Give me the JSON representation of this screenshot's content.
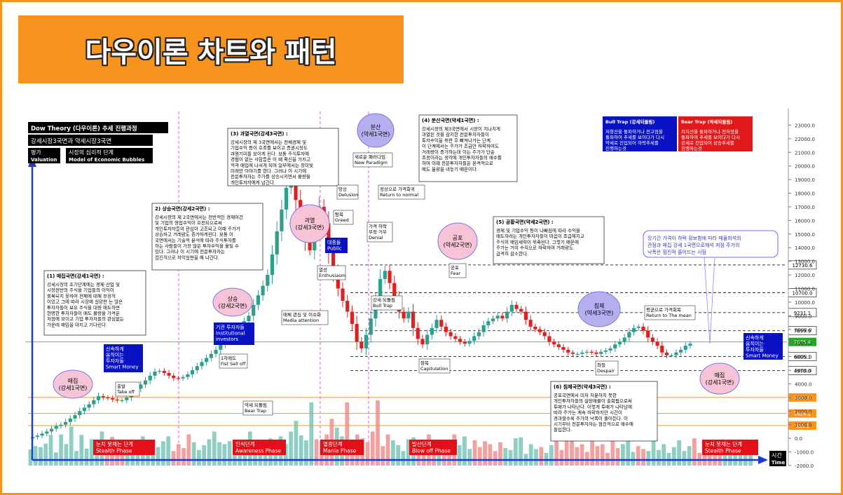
{
  "page_title": "다우이론 차트와 패턴",
  "chart_data": {
    "type": "candlestick",
    "y_ticks": [
      "23000.0",
      "22000.0",
      "21000.0",
      "20000.0",
      "19000.0",
      "18000.0",
      "17000.0",
      "16000.0",
      "15000.0",
      "14000.0",
      "13000.0",
      "12000.0",
      "11000.0",
      "10000.0",
      "9000.0",
      "8000.0",
      "7000.0",
      "6000.0",
      "5000.0",
      "4000.0",
      "3000.0",
      "2000.0",
      "1000.0",
      "0.0",
      "-1000.0",
      "-2000.0"
    ],
    "ylim": [
      -2000,
      24000
    ],
    "price_levels": [
      {
        "label": "12730.6",
        "value": 12730.6,
        "color": "#000000",
        "style": "dashed"
      },
      {
        "label": "10700.0",
        "value": 10700,
        "color": "#000000",
        "style": "dashed"
      },
      {
        "label": "9231.1",
        "value": 9231.1,
        "color": "#000000",
        "style": "dashed"
      },
      {
        "label": "7899.9",
        "value": 7899.9,
        "color": "#000000",
        "style": "dashed"
      },
      {
        "label": "7075.4",
        "value": 7075.4,
        "color": "#22aa22",
        "style": "solid"
      },
      {
        "label": "6005.1",
        "value": 6005.1,
        "color": "#000000",
        "style": "dashed"
      },
      {
        "label": "4970.0",
        "value": 4970,
        "color": "#000000",
        "style": "dashed"
      },
      {
        "label": "3001.0",
        "value": 3001,
        "color": "#f7941d",
        "style": "solid"
      },
      {
        "label": "1826.2",
        "value": 1826.2,
        "color": "#f7941d",
        "style": "solid"
      },
      {
        "label": "935.1",
        "value": 935.1,
        "color": "#f7941d",
        "style": "solid"
      }
    ],
    "price_series": [
      0,
      100,
      200,
      350,
      500,
      700,
      900,
      1000,
      1200,
      1450,
      1700,
      2000,
      2250,
      2500,
      2800,
      3100,
      3000,
      2950,
      2850,
      2780,
      2800,
      3000,
      3350,
      3650,
      3950,
      4250,
      4600,
      4900,
      4950,
      4800,
      4600,
      4420,
      4400,
      4500,
      4700,
      5000,
      5300,
      5600,
      5900,
      6200,
      6500,
      6900,
      7300,
      7500,
      7800,
      8200,
      8600,
      9000,
      9800,
      10500,
      11200,
      12000,
      13500,
      15200,
      16800,
      18400,
      19300,
      17500,
      15800,
      14400,
      13800,
      15300,
      17000,
      15800,
      13700,
      12200,
      11000,
      10100,
      9300,
      8400,
      7100,
      6600,
      7600,
      8800,
      10100,
      11700,
      12300,
      11400,
      10300,
      9300,
      8800,
      9300,
      8100,
      7300,
      6900,
      7600,
      8100,
      8700,
      8200,
      7800,
      7500,
      7300,
      7100,
      6950,
      7150,
      7500,
      7800,
      8300,
      8600,
      8800,
      9000,
      8800,
      9300,
      9800,
      9500,
      9300,
      8700,
      8200,
      8000,
      7800,
      7500,
      7100,
      6900,
      6700,
      6500,
      6300,
      6200,
      6200,
      6300,
      6350,
      6300,
      6200,
      6350,
      6450,
      6600,
      6900,
      7100,
      7400,
      7800,
      8100,
      8200,
      7900,
      7400,
      7100,
      6800,
      6300,
      6100,
      6100,
      6300,
      6500,
      6800,
      6950
    ],
    "volume_series": [
      1650,
      2000,
      1900,
      2250,
      3150,
      1350,
      3200,
      2200,
      4000,
      1500,
      3150,
      1750,
      2700,
      2000,
      3500,
      1200,
      2950,
      2100,
      1800,
      2600,
      1700,
      2400,
      3000,
      1500,
      2600,
      1900,
      2500,
      3000,
      1500,
      2200,
      1800,
      3200,
      2400,
      1600,
      2100,
      2700,
      3500,
      2400,
      2200,
      2500,
      1700,
      1600,
      2500,
      3500,
      2600,
      1900,
      1500,
      2800,
      2100,
      3000,
      2200,
      3500,
      4600,
      3100,
      2600,
      6500,
      2700,
      2400,
      3200,
      4800,
      3900,
      3000,
      6500,
      2500,
      3200,
      2800,
      2400,
      3500,
      6700,
      2000,
      3200,
      2600,
      2100,
      1500,
      2700,
      2900,
      1700,
      2300,
      3200,
      1800,
      1900,
      2000,
      1400,
      3200,
      2100,
      3000,
      1700,
      2600,
      1900,
      2500,
      2200,
      1500,
      2400,
      1800,
      1600,
      2800,
      2900,
      1200,
      2200,
      1700,
      1900,
      1300,
      2100,
      2500,
      1600,
      3300,
      2600,
      1900,
      2200,
      1400,
      2800,
      2000,
      2200,
      1300,
      2500,
      1800,
      2200,
      3000,
      1400,
      2000,
      1700,
      1500,
      2700,
      1600,
      2200,
      1300,
      1900,
      2600,
      1500,
      2000,
      2800,
      1300,
      1600,
      2000,
      1900,
      1400,
      1700,
      2200,
      1300,
      1500,
      1800,
      1300
    ],
    "volume_axis_min": -2000,
    "volume_axis_top": 3000,
    "bull_color": "#2e9e8e",
    "bear_color": "#e02020",
    "vol_bull_color": "#8ecfc4",
    "vol_bear_color": "#f2a0a0",
    "axis_color": "#1a3adb"
  },
  "legend": {
    "title": "Dow Theory (다우이론) 추세 진행과정",
    "subtitle": "강세시장3국면과 약세시장3국면",
    "valuation_ko": "평가",
    "valuation_en": "Valuation",
    "model_ko": "시장의 심리적 단계",
    "model_en": "Model of Economic Bubbles"
  },
  "axis_x_label_ko": "시간",
  "axis_x_label_en": "Time",
  "notes": {
    "n1": {
      "title": "(1) 매집국면(강세1국면) :",
      "body": "강세시장의 초기단계에는 경제·산업 및 시장전반의 주식을 기업들의 이익이 회복되지 못하여 전체에 대해 부정적 이었고 그에 따라 시장에 실망한 는 많은 투자자들이 보유 주식을 대량 매도하면 현명한 투자자들이 매도 물량을 가격은 저점에 모이고 기업 투자자들의 관심없는 가운데 매입을 마지고 기다린다."
    },
    "n2": {
      "title": "2) 상승국면(강세2국면) :",
      "body": "강세시장의 제 2국면에서는 전반적인 경제여건 및 기업의 영업수익이 호전되으로써 개인투자자들의 관심이 고조되고 이때 주가가 상승하고 거래량도 증가하게된다. 보통 이 국면에서는 기술적 분석에 따라 주식투자를 하는 사람들이 가장 많은 투자수익을 올릴 수 있다. 그러나 이 시기에 전문투자자는 점진적으로 차익실현을 해 나간다."
    },
    "n3": {
      "title": "(3) 과열국면(강세3국면) :",
      "body": "강세시장의 제 3국면에서는 전체경제 및 기업수익 등이 호조를 보이고 증권시장도 과열기미를 보이게 된다. 보통 주식투자에 경험이 없는 사람들은 이 때 확신을 가지고 적극 매입에 나서게 되며 일부에서는 장미빛 미래만 이야기를 한다. 그러나 이 시기에 전문투자자는 주가를 상승시키면서 물량을 개인투자자에게 넘긴다."
    },
    "n4": {
      "title": "(4) 분산국면(약세1국면) :",
      "body": "강세시장의 제3국면에서 시장이 지나치게 과열된 것을 감지한 전문투자자들이 투자수익을 취한 후 빠져나가는 단계. 이 단계에서는 주가가 조금만 하락하여도 거래량이 증가하는데 이는 주가가 단순 조정이라는 생각에 개인투자자들의 매수를 하며 이때 전문투자자들은 본격적으로 매도 물량을 내놓기 때문이다."
    },
    "n5": {
      "title": "(5) 공황국면(약세2국면) :",
      "body": "경제 및 기업수익 등이 나빠짐에 따라 수익을 매도하려는 개인투자자들이 마음이 조급해지고 주식의 매입세력이 위축된다. 그렇기 때문에 주가는 거의 수직으로 하락하며 거래량도 급격히 감소한다."
    },
    "n6": {
      "title": "(6) 침체국면(약세3국면) :",
      "body": "공포국면에서 미처 처분하지 못한 개인투자자들의 실망매물이 출회됨으로써 투매가 나타난다. 이렇게 투매가 나타남에 따라 주가는 계속 하락하지만 시간이 경과할수록 주가의 낙폭이 줄어든다. 이 시기부터 전문투자자는 점진적으로 매수에 들입한다."
    },
    "n7": {
      "body": "장기간 가격이 하락 횡보함에 따라 매물희석의 관점과 매집 강세 1국면으로해석 저점 주가의 낙폭은 점진적 줄어드는 시점"
    }
  },
  "traps": {
    "bull_title": "Bull Trap (강세되돌림)",
    "bull_body": "저항선을 돌파하거나 전고점을 돌파하여 추세를 보이다가 다시 약세로 진입되어 하락추세를 진행하는것",
    "bear_title": "Bear Trap (약세되돌림)",
    "bear_body": "지지선을 돌파하거나 전저점을 돌파하여 추세를 보이다가 다시 강세로 진입되어 상승추세를 진행하는것"
  },
  "bubbles": {
    "b_maejip1": "매집\n(강세1국면)",
    "b_sangseung": "상승\n(강세2국면)",
    "b_gwayeol": "과열\n(강세3국면)",
    "b_bunsan": "분산\n(약세1국면)",
    "b_gongpo": "공포\n(약세2국면)",
    "b_chimche": "침체\n(약세3국면)",
    "b_maejip2": "매집\n(강세1국면)"
  },
  "annotations": {
    "a_takeoff": "출발\nTake off",
    "a_firstsell": "1차매도\nFist Sell off",
    "a_beartrap": "약세 되돌림\nBear Trap",
    "a_media": "매체 관심 및 이슈화\nMedia attention",
    "a_enthusiasm": "열성\nEnthusiasm",
    "a_greed": "탐욕\nGreed",
    "a_delusion": "망상\nDelusion",
    "a_newparadigm": "새로운 패러다임\nNew Paradigm",
    "a_return": "정상으로 가격회귀\nReturn to normal",
    "a_denial": "가격 하락\n부정·거부\nDenial",
    "a_bulltrap": "강세 되돌림\nBull Trap",
    "a_fear": "공포\nFear",
    "a_capitulation": "항복\nCapitulation",
    "a_despair": "좌절\nDespair",
    "a_returnmean": "평균으로 가격회복\nReturn to The mean"
  },
  "box_labels": {
    "institutional": "기관 투자자들\nInstitutional\ninvestors",
    "public": "대중들\nPublic",
    "smart_left": "신속하게\n움직이는\n투자자들\nSmart Money",
    "smart_right": "신속하게\n움직이는\n투자자들\nSmart Money"
  },
  "phases": {
    "stealth1": "눈치 못채는 단계\nStealth Phase",
    "awareness": "인식단계\nAwareness Phase",
    "mania": "열광단계\nMania Phase",
    "blowoff": "발산단계\nBlow off Phase",
    "stealth2": "눈치 못채는 단계\nStealth Phase"
  }
}
